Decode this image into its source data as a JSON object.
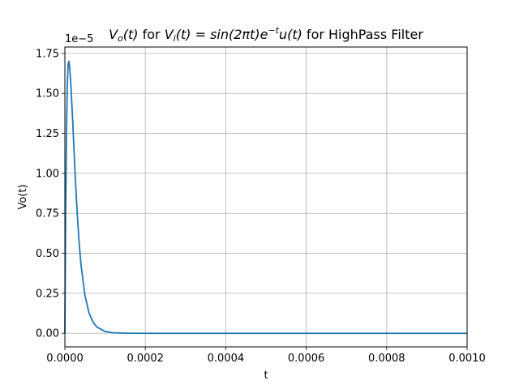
{
  "chart_data": {
    "type": "line",
    "title": {
      "prefix_math": "V",
      "prefix_sub": "o",
      "prefix_arg": "(t)",
      "mid": " for ",
      "vi_math": "V",
      "vi_sub": "i",
      "vi_eq": "(t) = sin(2πt)e",
      "vi_sup": "−t",
      "vi_tail": "u(t)",
      "suffix": " for HighPass Filter"
    },
    "xlabel": "t",
    "ylabel": "Vo(t)",
    "y_offset_label": "1e−5",
    "xlim": [
      0,
      0.001
    ],
    "ylim": [
      -0.085,
      1.79
    ],
    "y_scale_note": "values in units of 1e-5",
    "x_ticks": [
      0,
      0.0002,
      0.0004,
      0.0006,
      0.0008,
      0.001
    ],
    "x_tick_labels": [
      "0.0000",
      "0.0002",
      "0.0004",
      "0.0006",
      "0.0008",
      "0.0010"
    ],
    "y_ticks": [
      0,
      0.25,
      0.5,
      0.75,
      1.0,
      1.25,
      1.5,
      1.75
    ],
    "y_tick_labels": [
      "0.00",
      "0.25",
      "0.50",
      "0.75",
      "1.00",
      "1.25",
      "1.50",
      "1.75"
    ],
    "grid": true,
    "series": [
      {
        "color": "#1f77b4",
        "x": [
          0,
          2e-06,
          4e-06,
          6e-06,
          8e-06,
          1e-05,
          1.2e-05,
          1.5e-05,
          2e-05,
          2.5e-05,
          3e-05,
          3.5e-05,
          4e-05,
          5e-05,
          6e-05,
          7e-05,
          8e-05,
          0.0001,
          0.00012,
          0.00015,
          0.0002,
          0.0003,
          0.0004,
          0.0005,
          0.0006,
          0.0007,
          0.0008,
          0.0009,
          0.001
        ],
        "y": [
          0,
          0.75,
          1.25,
          1.55,
          1.68,
          1.7,
          1.66,
          1.55,
          1.3,
          1.02,
          0.78,
          0.58,
          0.43,
          0.235,
          0.128,
          0.07,
          0.038,
          0.011,
          0.003,
          0.0005,
          0.0,
          0.0,
          0.0,
          0.0,
          0.0,
          0.0,
          0.0,
          0.0,
          0.0
        ]
      }
    ]
  },
  "colors": {
    "line": "#1f77b4",
    "grid": "#b0b0b0",
    "axes": "#000000"
  }
}
